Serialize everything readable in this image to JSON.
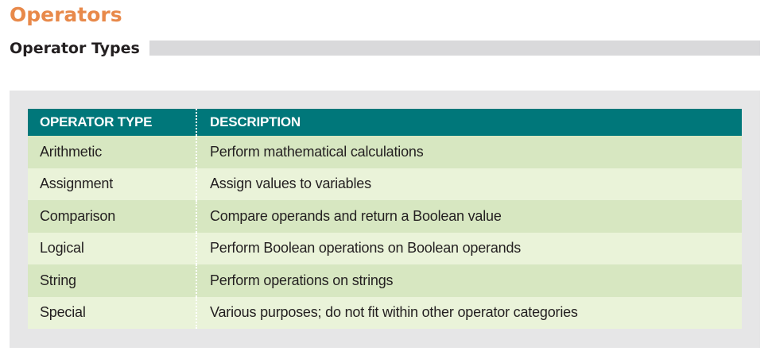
{
  "page": {
    "title": "Operators",
    "subtitle": "Operator Types"
  },
  "table": {
    "headers": [
      "OPERATOR TYPE",
      "DESCRIPTION"
    ],
    "rows": [
      {
        "type": "Arithmetic",
        "description": "Perform mathematical calculations"
      },
      {
        "type": "Assignment",
        "description": "Assign values to variables"
      },
      {
        "type": "Comparison",
        "description": "Compare operands and return a Boolean value"
      },
      {
        "type": "Logical",
        "description": "Perform Boolean operations on Boolean operands"
      },
      {
        "type": "String",
        "description": "Perform operations on strings"
      },
      {
        "type": "Special",
        "description": "Various purposes; do not fit within other operator categories"
      }
    ]
  },
  "colors": {
    "title": "#e8894a",
    "header_bg": "#00777a",
    "row_dark": "#d7e7c1",
    "row_light": "#eaf3d9",
    "panel_bg": "#e6e6e7"
  }
}
